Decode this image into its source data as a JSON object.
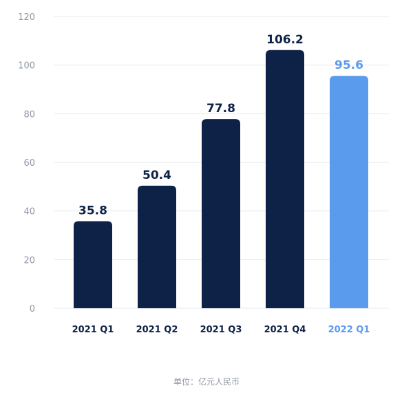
{
  "chart_data": {
    "type": "bar",
    "categories": [
      "2021 Q1",
      "2021 Q2",
      "2021 Q3",
      "2021 Q4",
      "2022 Q1"
    ],
    "values": [
      35.8,
      50.4,
      77.8,
      106.2,
      95.6
    ],
    "value_labels": [
      "35.8",
      "50.4",
      "77.8",
      "106.2",
      "95.6"
    ],
    "ylim": [
      0,
      120
    ],
    "yticks": [
      0,
      20,
      40,
      60,
      80,
      100,
      120
    ],
    "grid": true,
    "highlight_index": 4,
    "colors": {
      "bar": "#0e2147",
      "highlight": "#5b9bed",
      "grid": "#e6e8ec",
      "tick": "#8f96a3"
    },
    "title": "",
    "xlabel": "",
    "ylabel": ""
  },
  "footer": {
    "unit_note": "单位：亿元人民币"
  }
}
